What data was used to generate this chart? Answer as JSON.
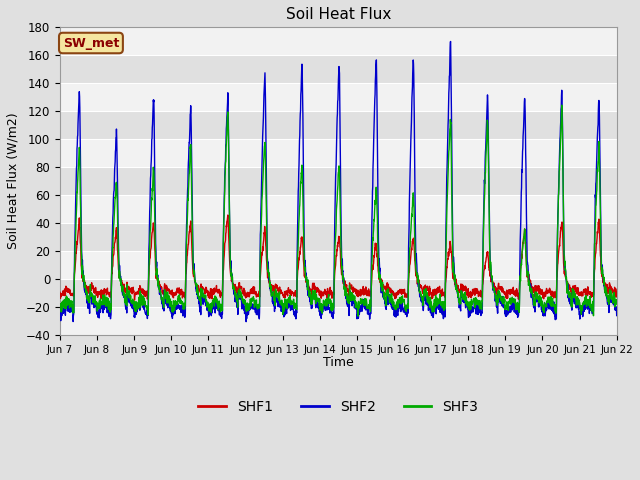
{
  "title": "Soil Heat Flux",
  "ylabel": "Soil Heat Flux (W/m2)",
  "xlabel": "Time",
  "ylim": [
    -40,
    180
  ],
  "yticks": [
    -40,
    -20,
    0,
    20,
    40,
    60,
    80,
    100,
    120,
    140,
    160,
    180
  ],
  "bg_color": "#e0e0e0",
  "plot_bg_light": "#f2f2f2",
  "plot_bg_dark": "#e0e0e0",
  "legend_label": "SW_met",
  "legend_text_color": "#8B0000",
  "legend_bg": "#f5e6a0",
  "legend_border": "#8B4513",
  "line_colors": {
    "SHF1": "#cc0000",
    "SHF2": "#0000cc",
    "SHF3": "#00aa00"
  },
  "line_width": 1.0,
  "x_tick_labels": [
    "Jun 7",
    "Jun 8",
    "Jun 9",
    "Jun 10",
    "Jun 11",
    "Jun 12",
    "Jun 13",
    "Jun 14",
    "Jun 15",
    "Jun 16",
    "Jun 17",
    "Jun 18",
    "Jun 19",
    "Jun 20",
    "Jun 21",
    "Jun 22"
  ],
  "shf1_trough": -10,
  "shf2_trough": -22,
  "shf3_trough": -18,
  "peaks_shf1": [
    40,
    35,
    40,
    40,
    45,
    35,
    30,
    30,
    25,
    30,
    25,
    20,
    35,
    40,
    42
  ],
  "peaks_shf2": [
    135,
    105,
    130,
    122,
    132,
    148,
    153,
    155,
    157,
    157,
    170,
    130,
    130,
    133,
    128
  ],
  "peaks_shf3": [
    93,
    70,
    78,
    95,
    120,
    100,
    82,
    82,
    65,
    60,
    115,
    113,
    35,
    122,
    95
  ]
}
